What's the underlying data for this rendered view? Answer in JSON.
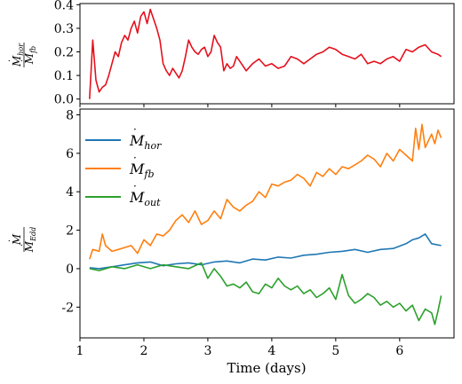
{
  "chart_data": [
    {
      "type": "line",
      "panel": "top",
      "ylabel": "Ṁhor / Ṁfb",
      "ylabel_parts": {
        "num": "M",
        "num_sub": "hor",
        "den": "M",
        "den_sub": "fb"
      },
      "xlim": [
        1.0,
        6.85
      ],
      "ylim": [
        -0.02,
        0.405
      ],
      "yticks": [
        0.0,
        0.1,
        0.2,
        0.3,
        0.4
      ],
      "ytick_labels": [
        "0.0",
        "0.1",
        "0.2",
        "0.3",
        "0.4"
      ],
      "xticks": [
        1,
        2,
        3,
        4,
        5,
        6
      ],
      "series": [
        {
          "color": "#e4111d",
          "x": [
            1.15,
            1.2,
            1.25,
            1.3,
            1.35,
            1.4,
            1.45,
            1.5,
            1.55,
            1.6,
            1.65,
            1.7,
            1.75,
            1.8,
            1.85,
            1.9,
            1.95,
            2.0,
            2.05,
            2.1,
            2.15,
            2.2,
            2.25,
            2.3,
            2.35,
            2.4,
            2.45,
            2.5,
            2.55,
            2.6,
            2.65,
            2.7,
            2.75,
            2.8,
            2.85,
            2.9,
            2.95,
            3.0,
            3.05,
            3.1,
            3.15,
            3.2,
            3.25,
            3.3,
            3.35,
            3.4,
            3.45,
            3.5,
            3.6,
            3.7,
            3.8,
            3.9,
            4.0,
            4.1,
            4.2,
            4.3,
            4.4,
            4.5,
            4.6,
            4.7,
            4.8,
            4.9,
            5.0,
            5.1,
            5.2,
            5.3,
            5.4,
            5.5,
            5.6,
            5.7,
            5.8,
            5.9,
            6.0,
            6.1,
            6.2,
            6.3,
            6.4,
            6.5,
            6.6,
            6.65
          ],
          "y": [
            0.0,
            0.25,
            0.08,
            0.03,
            0.05,
            0.06,
            0.1,
            0.15,
            0.2,
            0.18,
            0.24,
            0.27,
            0.25,
            0.3,
            0.33,
            0.28,
            0.35,
            0.37,
            0.32,
            0.38,
            0.34,
            0.3,
            0.25,
            0.15,
            0.12,
            0.1,
            0.13,
            0.11,
            0.09,
            0.12,
            0.18,
            0.25,
            0.22,
            0.2,
            0.19,
            0.21,
            0.22,
            0.18,
            0.2,
            0.27,
            0.24,
            0.22,
            0.12,
            0.15,
            0.13,
            0.14,
            0.18,
            0.16,
            0.12,
            0.15,
            0.17,
            0.14,
            0.15,
            0.13,
            0.14,
            0.18,
            0.17,
            0.15,
            0.17,
            0.19,
            0.2,
            0.22,
            0.21,
            0.19,
            0.18,
            0.17,
            0.19,
            0.15,
            0.16,
            0.15,
            0.17,
            0.18,
            0.16,
            0.21,
            0.2,
            0.22,
            0.23,
            0.2,
            0.19,
            0.18
          ]
        }
      ]
    },
    {
      "type": "line",
      "panel": "bottom",
      "xlabel": "Time (days)",
      "ylabel": "Ṁ / ṀEdd",
      "ylabel_parts": {
        "num": "M",
        "num_sub": "",
        "den": "M",
        "den_sub": "Edd"
      },
      "xlim": [
        1.0,
        6.85
      ],
      "ylim": [
        -3.6,
        8.3
      ],
      "xticks": [
        1,
        2,
        3,
        4,
        5,
        6
      ],
      "xtick_labels": [
        "1",
        "2",
        "3",
        "4",
        "5",
        "6"
      ],
      "yticks": [
        -2,
        0,
        2,
        4,
        6,
        8
      ],
      "ytick_labels": [
        "-2",
        "0",
        "2",
        "4",
        "6",
        "8"
      ],
      "legend_placement": "upper-left",
      "series": [
        {
          "name": "Ṁhor",
          "label_base": "M",
          "label_sub": "hor",
          "color": "#1f77b4",
          "x": [
            1.15,
            1.3,
            1.5,
            1.7,
            1.9,
            2.1,
            2.3,
            2.5,
            2.7,
            2.9,
            3.1,
            3.3,
            3.5,
            3.7,
            3.9,
            4.1,
            4.3,
            4.5,
            4.7,
            4.9,
            5.1,
            5.3,
            5.5,
            5.7,
            5.9,
            6.1,
            6.2,
            6.3,
            6.4,
            6.5,
            6.65
          ],
          "y": [
            0.05,
            0.0,
            0.1,
            0.2,
            0.3,
            0.35,
            0.15,
            0.25,
            0.3,
            0.2,
            0.35,
            0.4,
            0.3,
            0.5,
            0.45,
            0.6,
            0.55,
            0.7,
            0.75,
            0.85,
            0.9,
            1.0,
            0.85,
            1.0,
            1.05,
            1.3,
            1.5,
            1.6,
            1.8,
            1.3,
            1.2
          ]
        },
        {
          "name": "Ṁfb",
          "label_base": "M",
          "label_sub": "fb",
          "color": "#ff7f0e",
          "x": [
            1.15,
            1.2,
            1.3,
            1.35,
            1.4,
            1.5,
            1.6,
            1.7,
            1.8,
            1.9,
            2.0,
            2.1,
            2.2,
            2.3,
            2.4,
            2.5,
            2.6,
            2.7,
            2.8,
            2.9,
            3.0,
            3.1,
            3.2,
            3.3,
            3.4,
            3.5,
            3.6,
            3.7,
            3.8,
            3.9,
            4.0,
            4.1,
            4.2,
            4.3,
            4.4,
            4.5,
            4.6,
            4.7,
            4.8,
            4.9,
            5.0,
            5.1,
            5.2,
            5.3,
            5.4,
            5.5,
            5.6,
            5.7,
            5.8,
            5.9,
            6.0,
            6.1,
            6.2,
            6.25,
            6.3,
            6.35,
            6.4,
            6.5,
            6.55,
            6.6,
            6.65
          ],
          "y": [
            0.5,
            1.0,
            0.9,
            1.8,
            1.2,
            0.9,
            1.0,
            1.1,
            1.2,
            0.8,
            1.5,
            1.2,
            1.8,
            1.7,
            2.0,
            2.5,
            2.8,
            2.4,
            3.0,
            2.3,
            2.5,
            3.0,
            2.6,
            3.6,
            3.2,
            3.0,
            3.3,
            3.5,
            4.0,
            3.7,
            4.4,
            4.3,
            4.5,
            4.6,
            4.9,
            4.7,
            4.3,
            5.0,
            4.8,
            5.2,
            4.9,
            5.3,
            5.2,
            5.4,
            5.6,
            5.9,
            5.7,
            5.3,
            6.0,
            5.6,
            6.2,
            5.9,
            5.6,
            7.3,
            6.2,
            7.5,
            6.3,
            7.0,
            6.5,
            7.2,
            6.8
          ]
        },
        {
          "name": "Ṁout",
          "label_base": "M",
          "label_sub": "out",
          "color": "#2ca02c",
          "x": [
            1.15,
            1.3,
            1.5,
            1.7,
            1.9,
            2.1,
            2.3,
            2.5,
            2.7,
            2.9,
            3.0,
            3.1,
            3.2,
            3.3,
            3.4,
            3.5,
            3.6,
            3.7,
            3.8,
            3.9,
            4.0,
            4.1,
            4.2,
            4.3,
            4.4,
            4.5,
            4.6,
            4.7,
            4.8,
            4.9,
            5.0,
            5.1,
            5.2,
            5.3,
            5.4,
            5.5,
            5.6,
            5.7,
            5.8,
            5.9,
            6.0,
            6.1,
            6.2,
            6.3,
            6.4,
            6.5,
            6.55,
            6.6,
            6.65
          ],
          "y": [
            0.0,
            -0.1,
            0.1,
            0.0,
            0.2,
            0.0,
            0.2,
            0.1,
            0.0,
            0.3,
            -0.5,
            0.0,
            -0.4,
            -0.9,
            -0.8,
            -1.0,
            -0.7,
            -1.2,
            -1.3,
            -0.8,
            -1.0,
            -0.5,
            -0.9,
            -1.1,
            -0.9,
            -1.3,
            -1.1,
            -1.5,
            -1.3,
            -1.0,
            -1.6,
            -0.3,
            -1.4,
            -1.8,
            -1.6,
            -1.3,
            -1.5,
            -1.9,
            -1.7,
            -2.0,
            -1.8,
            -2.2,
            -1.9,
            -2.7,
            -2.1,
            -2.3,
            -2.9,
            -2.2,
            -1.4
          ]
        }
      ]
    }
  ]
}
